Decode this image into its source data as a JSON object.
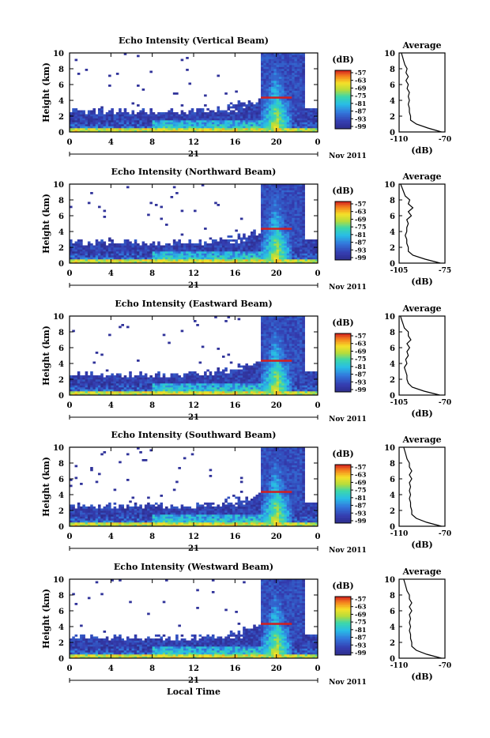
{
  "figure": {
    "xlabel": "Local Time",
    "date_label": "Nov 2011",
    "day_label": "21",
    "ylabel": "Height (km)",
    "colorbar_unit": "(dB)",
    "avg_title": "Average",
    "avg_unit": "(dB)"
  },
  "chart_data": [
    {
      "type": "heatmap",
      "title": "Echo Intensity (Vertical Beam)",
      "xlabel": "Local Time",
      "ylabel": "Height (km)",
      "x_ticks": [
        "0",
        "4",
        "8",
        "12",
        "16",
        "20",
        "0"
      ],
      "xlim": [
        0,
        24
      ],
      "y_ticks": [
        "0",
        "2",
        "4",
        "6",
        "8",
        "10"
      ],
      "ylim": [
        0,
        10
      ],
      "colorbar": {
        "unit": "(dB)",
        "ticks": [
          "-57",
          "-63",
          "-69",
          "-75",
          "-81",
          "-87",
          "-93",
          "-99"
        ]
      },
      "profile": {
        "title": "Average",
        "xlabel": "(dB)",
        "x_ticks": [
          "-110",
          "-70"
        ],
        "xlim": [
          -110,
          -70
        ],
        "height": [
          0,
          0.5,
          1,
          1.5,
          2,
          2.5,
          3,
          3.5,
          4,
          4.5,
          5,
          5.5,
          6,
          6.5,
          7,
          7.5,
          8,
          8.5,
          9,
          9.5,
          10
        ],
        "values": [
          -73,
          -85,
          -95,
          -100,
          -100,
          -101,
          -101,
          -102,
          -101,
          -102,
          -101,
          -103,
          -102,
          -104,
          -102,
          -104,
          -103,
          -105,
          -106,
          -107,
          -108
        ]
      }
    },
    {
      "type": "heatmap",
      "title": "Echo Intensity (Northward Beam)",
      "xlabel": "Local Time",
      "ylabel": "Height (km)",
      "x_ticks": [
        "0",
        "4",
        "8",
        "12",
        "16",
        "20",
        "0"
      ],
      "xlim": [
        0,
        24
      ],
      "y_ticks": [
        "0",
        "2",
        "4",
        "6",
        "8",
        "10"
      ],
      "ylim": [
        0,
        10
      ],
      "colorbar": {
        "unit": "(dB)",
        "ticks": [
          "-57",
          "-63",
          "-69",
          "-75",
          "-81",
          "-87",
          "-93",
          "-99"
        ]
      },
      "profile": {
        "title": "Average",
        "xlabel": "(dB)",
        "x_ticks": [
          "-105",
          "-75"
        ],
        "xlim": [
          -105,
          -75
        ],
        "height": [
          0,
          0.5,
          1,
          1.5,
          2,
          2.5,
          3,
          3.5,
          4,
          4.5,
          5,
          5.5,
          6,
          6.5,
          7,
          7.5,
          8,
          8.5,
          9,
          9.5,
          10
        ],
        "values": [
          -78,
          -88,
          -96,
          -99,
          -99,
          -100,
          -100,
          -101,
          -100,
          -100,
          -99,
          -100,
          -97,
          -99,
          -96,
          -99,
          -98,
          -101,
          -102,
          -103,
          -104
        ]
      }
    },
    {
      "type": "heatmap",
      "title": "Echo Intensity (Eastward Beam)",
      "xlabel": "Local Time",
      "ylabel": "Height (km)",
      "x_ticks": [
        "0",
        "4",
        "8",
        "12",
        "16",
        "20",
        "0"
      ],
      "xlim": [
        0,
        24
      ],
      "y_ticks": [
        "0",
        "2",
        "4",
        "6",
        "8",
        "10"
      ],
      "ylim": [
        0,
        10
      ],
      "colorbar": {
        "unit": "(dB)",
        "ticks": [
          "-57",
          "-63",
          "-69",
          "-75",
          "-81",
          "-87",
          "-93",
          "-99"
        ]
      },
      "profile": {
        "title": "Average",
        "xlabel": "(dB)",
        "x_ticks": [
          "-105",
          "-70"
        ],
        "xlim": [
          -105,
          -70
        ],
        "height": [
          0,
          0.5,
          1,
          1.5,
          2,
          2.5,
          3,
          3.5,
          4,
          4.5,
          5,
          5.5,
          6,
          6.5,
          7,
          7.5,
          8,
          8.5,
          9,
          9.5,
          10
        ],
        "values": [
          -74,
          -86,
          -95,
          -98,
          -99,
          -99,
          -100,
          -101,
          -99,
          -100,
          -98,
          -99,
          -97,
          -99,
          -96,
          -98,
          -98,
          -101,
          -102,
          -103,
          -104
        ]
      }
    },
    {
      "type": "heatmap",
      "title": "Echo Intensity (Southward Beam)",
      "xlabel": "Local Time",
      "ylabel": "Height (km)",
      "x_ticks": [
        "0",
        "4",
        "8",
        "12",
        "16",
        "20",
        "0"
      ],
      "xlim": [
        0,
        24
      ],
      "y_ticks": [
        "0",
        "2",
        "4",
        "6",
        "8",
        "10"
      ],
      "ylim": [
        0,
        10
      ],
      "colorbar": {
        "unit": "(dB)",
        "ticks": [
          "-57",
          "-63",
          "-69",
          "-75",
          "-81",
          "-87",
          "-93",
          "-99"
        ]
      },
      "profile": {
        "title": "Average",
        "xlabel": "(dB)",
        "x_ticks": [
          "-110",
          "-70"
        ],
        "xlim": [
          -110,
          -70
        ],
        "height": [
          0,
          0.5,
          1,
          1.5,
          2,
          2.5,
          3,
          3.5,
          4,
          4.5,
          5,
          5.5,
          6,
          6.5,
          7,
          7.5,
          8,
          8.5,
          9,
          9.5,
          10
        ],
        "values": [
          -73,
          -86,
          -95,
          -99,
          -99,
          -100,
          -100,
          -101,
          -100,
          -101,
          -100,
          -101,
          -99,
          -101,
          -99,
          -101,
          -101,
          -103,
          -104,
          -105,
          -106
        ]
      }
    },
    {
      "type": "heatmap",
      "title": "Echo Intensity (Westward Beam)",
      "xlabel": "Local Time",
      "ylabel": "Height (km)",
      "x_ticks": [
        "0",
        "4",
        "8",
        "12",
        "16",
        "20",
        "0"
      ],
      "xlim": [
        0,
        24
      ],
      "y_ticks": [
        "0",
        "2",
        "4",
        "6",
        "8",
        "10"
      ],
      "ylim": [
        0,
        10
      ],
      "colorbar": {
        "unit": "(dB)",
        "ticks": [
          "-57",
          "-63",
          "-69",
          "-75",
          "-81",
          "-87",
          "-93",
          "-99"
        ]
      },
      "profile": {
        "title": "Average",
        "xlabel": "(dB)",
        "x_ticks": [
          "-110",
          "-70"
        ],
        "xlim": [
          -110,
          -70
        ],
        "height": [
          0,
          0.5,
          1,
          1.5,
          2,
          2.5,
          3,
          3.5,
          4,
          4.5,
          5,
          5.5,
          6,
          6.5,
          7,
          7.5,
          8,
          8.5,
          9,
          9.5,
          10
        ],
        "values": [
          -73,
          -86,
          -95,
          -99,
          -99,
          -100,
          -100,
          -101,
          -100,
          -101,
          -100,
          -101,
          -99,
          -101,
          -99,
          -101,
          -101,
          -103,
          -104,
          -105,
          -106
        ]
      }
    }
  ]
}
